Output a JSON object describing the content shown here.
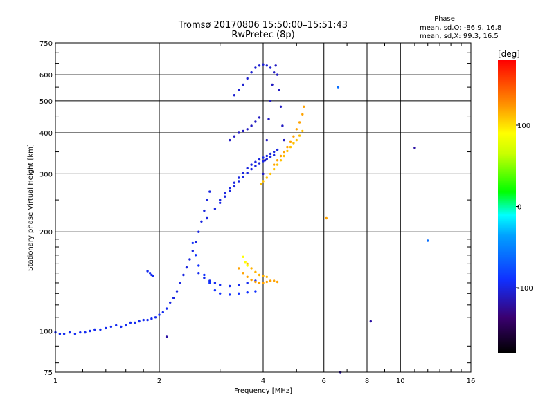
{
  "chart_data": {
    "type": "scatter",
    "title": "Tromsø 20170806 15:50:00–15:51:43",
    "subtitle": "RwPretec (8p)",
    "xlabel": "Frequency [MHz]",
    "ylabel": "Stationary phase Virtual Height [km]",
    "x_scale": "log",
    "y_scale": "log",
    "xlim": [
      1,
      16
    ],
    "ylim": [
      75,
      750
    ],
    "grid": true,
    "x_ticks": [
      {
        "value": 1,
        "label": "1"
      },
      {
        "value": 2,
        "label": "2"
      },
      {
        "value": 4,
        "label": "4"
      },
      {
        "value": 6,
        "label": "6"
      },
      {
        "value": 8,
        "label": "8"
      },
      {
        "value": 10,
        "label": "10"
      },
      {
        "value": 16,
        "label": "16"
      }
    ],
    "y_ticks": [
      {
        "value": 75,
        "label": "75"
      },
      {
        "value": 100,
        "label": "100"
      },
      {
        "value": 200,
        "label": "200"
      },
      {
        "value": 300,
        "label": "300"
      },
      {
        "value": 400,
        "label": "400"
      },
      {
        "value": 500,
        "label": "500"
      },
      {
        "value": 600,
        "label": "600"
      },
      {
        "value": 750,
        "label": "750"
      }
    ],
    "phase_stats": {
      "heading": "Phase",
      "o_line": "mean, sd,O: -86.9, 16.8",
      "x_line": "mean, sd,X:  99.3, 16.5"
    },
    "colorbar": {
      "label": "[deg]",
      "range": [
        -180,
        180
      ],
      "ticks": [
        {
          "value": 100,
          "label": "100"
        },
        {
          "value": 0,
          "label": "0"
        },
        {
          "value": -100,
          "label": "-100"
        }
      ]
    },
    "series": [
      {
        "phase": -95,
        "points": [
          [
            1.0,
            99
          ],
          [
            1.03,
            98
          ],
          [
            1.06,
            98
          ],
          [
            1.1,
            99
          ],
          [
            1.14,
            98
          ],
          [
            1.18,
            99
          ],
          [
            1.22,
            99
          ],
          [
            1.26,
            100
          ],
          [
            1.3,
            101
          ],
          [
            1.35,
            101
          ],
          [
            1.4,
            102
          ],
          [
            1.45,
            103
          ],
          [
            1.5,
            104
          ],
          [
            1.55,
            103
          ],
          [
            1.6,
            104
          ],
          [
            1.65,
            106
          ],
          [
            1.7,
            106
          ],
          [
            1.75,
            107
          ],
          [
            1.8,
            108
          ],
          [
            1.85,
            108
          ],
          [
            1.9,
            109
          ],
          [
            1.95,
            110
          ],
          [
            2.0,
            112
          ],
          [
            2.05,
            114
          ],
          [
            2.1,
            117
          ]
        ]
      },
      {
        "phase": -100,
        "points": [
          [
            2.15,
            122
          ],
          [
            2.2,
            126
          ],
          [
            2.25,
            132
          ],
          [
            2.3,
            140
          ],
          [
            2.35,
            148
          ],
          [
            2.4,
            156
          ],
          [
            2.45,
            165
          ],
          [
            2.5,
            175
          ],
          [
            2.55,
            186
          ],
          [
            2.6,
            200
          ],
          [
            2.65,
            215
          ],
          [
            2.7,
            232
          ],
          [
            2.75,
            250
          ],
          [
            2.8,
            265
          ]
        ]
      },
      {
        "phase": -95,
        "points": [
          [
            1.85,
            152
          ],
          [
            1.88,
            150
          ],
          [
            1.9,
            148
          ],
          [
            1.92,
            147
          ]
        ]
      },
      {
        "phase": -90,
        "points": [
          [
            2.5,
            185
          ],
          [
            2.55,
            170
          ],
          [
            2.6,
            158
          ],
          [
            2.7,
            148
          ],
          [
            2.8,
            140
          ],
          [
            2.9,
            133
          ],
          [
            3.0,
            130
          ],
          [
            3.2,
            129
          ],
          [
            3.4,
            130
          ],
          [
            3.6,
            131
          ],
          [
            3.8,
            132
          ]
        ]
      },
      {
        "phase": -95,
        "points": [
          [
            2.6,
            150
          ],
          [
            2.7,
            145
          ],
          [
            2.8,
            142
          ],
          [
            2.9,
            140
          ],
          [
            3.0,
            138
          ],
          [
            3.2,
            137
          ],
          [
            3.4,
            138
          ],
          [
            3.6,
            140
          ],
          [
            3.8,
            142
          ]
        ]
      },
      {
        "phase": -100,
        "points": [
          [
            2.75,
            220
          ],
          [
            2.9,
            235
          ],
          [
            3.0,
            250
          ],
          [
            3.1,
            262
          ],
          [
            3.2,
            272
          ],
          [
            3.3,
            282
          ],
          [
            3.4,
            292
          ],
          [
            3.5,
            302
          ],
          [
            3.6,
            312
          ],
          [
            3.7,
            320
          ],
          [
            3.8,
            326
          ],
          [
            3.9,
            332
          ],
          [
            4.0,
            336
          ],
          [
            4.1,
            340
          ],
          [
            4.2,
            345
          ],
          [
            4.3,
            350
          ],
          [
            4.4,
            355
          ]
        ]
      },
      {
        "phase": -100,
        "points": [
          [
            3.0,
            245
          ],
          [
            3.1,
            256
          ],
          [
            3.2,
            266
          ],
          [
            3.3,
            275
          ],
          [
            3.4,
            285
          ],
          [
            3.5,
            294
          ],
          [
            3.6,
            302
          ],
          [
            3.7,
            310
          ],
          [
            3.8,
            317
          ],
          [
            3.9,
            323
          ],
          [
            4.0,
            328
          ],
          [
            4.1,
            333
          ],
          [
            4.2,
            338
          ],
          [
            4.3,
            342
          ]
        ]
      },
      {
        "phase": -110,
        "points": [
          [
            3.2,
            380
          ],
          [
            3.3,
            390
          ],
          [
            3.4,
            400
          ],
          [
            3.5,
            405
          ],
          [
            3.6,
            410
          ],
          [
            3.7,
            420
          ],
          [
            3.8,
            432
          ],
          [
            3.9,
            445
          ]
        ]
      },
      {
        "phase": -105,
        "points": [
          [
            3.3,
            520
          ],
          [
            3.4,
            540
          ],
          [
            3.5,
            560
          ],
          [
            3.6,
            585
          ],
          [
            3.7,
            610
          ],
          [
            3.8,
            630
          ],
          [
            3.9,
            640
          ],
          [
            4.0,
            645
          ],
          [
            4.1,
            640
          ],
          [
            4.2,
            630
          ]
        ]
      },
      {
        "phase": -110,
        "points": [
          [
            4.0,
            300
          ],
          [
            4.05,
            330
          ],
          [
            4.1,
            380
          ],
          [
            4.15,
            440
          ],
          [
            4.2,
            500
          ],
          [
            4.25,
            560
          ],
          [
            4.3,
            610
          ],
          [
            4.35,
            640
          ],
          [
            4.4,
            600
          ],
          [
            4.45,
            540
          ],
          [
            4.5,
            480
          ],
          [
            4.55,
            420
          ],
          [
            4.6,
            380
          ]
        ]
      },
      {
        "phase": 110,
        "points": [
          [
            3.95,
            280
          ],
          [
            4.0,
            285
          ],
          [
            4.1,
            292
          ],
          [
            4.2,
            300
          ],
          [
            4.3,
            310
          ],
          [
            4.4,
            320
          ],
          [
            4.5,
            330
          ],
          [
            4.6,
            340
          ],
          [
            4.7,
            352
          ],
          [
            4.8,
            362
          ],
          [
            4.9,
            372
          ],
          [
            5.0,
            380
          ],
          [
            5.1,
            392
          ],
          [
            5.2,
            405
          ]
        ]
      },
      {
        "phase": 120,
        "points": [
          [
            4.3,
            320
          ],
          [
            4.4,
            330
          ],
          [
            4.5,
            340
          ],
          [
            4.6,
            350
          ],
          [
            4.7,
            362
          ],
          [
            4.8,
            375
          ],
          [
            4.9,
            390
          ],
          [
            5.0,
            410
          ],
          [
            5.1,
            430
          ],
          [
            5.2,
            455
          ],
          [
            5.25,
            480
          ]
        ]
      },
      {
        "phase": 120,
        "points": [
          [
            3.4,
            155
          ],
          [
            3.5,
            150
          ],
          [
            3.6,
            146
          ],
          [
            3.7,
            143
          ],
          [
            3.8,
            141
          ],
          [
            3.9,
            140
          ],
          [
            4.0,
            140
          ],
          [
            4.1,
            141
          ],
          [
            4.2,
            142
          ],
          [
            4.3,
            142
          ],
          [
            4.4,
            141
          ]
        ]
      },
      {
        "phase": 115,
        "points": [
          [
            3.6,
            160
          ],
          [
            3.7,
            155
          ],
          [
            3.8,
            151
          ],
          [
            3.9,
            148
          ],
          [
            4.0,
            147
          ],
          [
            4.1,
            146
          ]
        ]
      },
      {
        "phase": 90,
        "points": [
          [
            3.5,
            168
          ],
          [
            3.55,
            162
          ],
          [
            3.6,
            158
          ]
        ]
      },
      {
        "phase": -120,
        "points": [
          [
            11.0,
            360
          ],
          [
            8.2,
            107
          ],
          [
            2.1,
            96
          ],
          [
            6.7,
            75
          ]
        ]
      },
      {
        "phase": -60,
        "points": [
          [
            6.6,
            550
          ],
          [
            12.0,
            188
          ]
        ]
      },
      {
        "phase": 120,
        "points": [
          [
            6.1,
            220
          ]
        ]
      }
    ]
  }
}
